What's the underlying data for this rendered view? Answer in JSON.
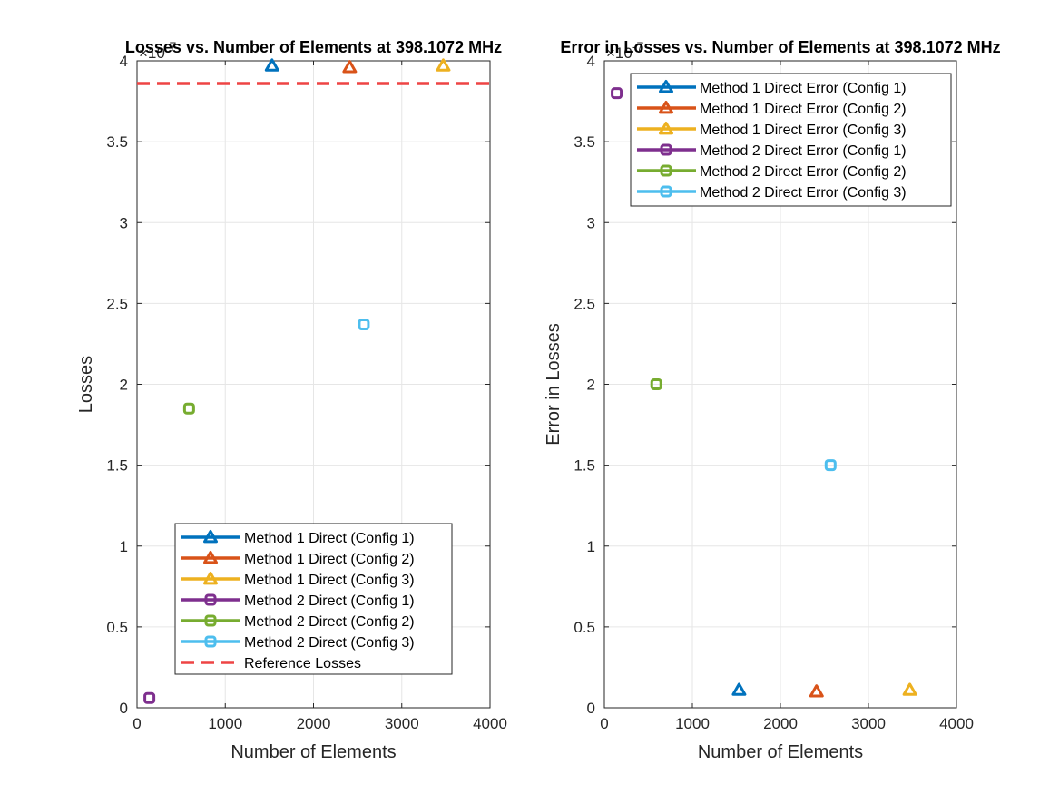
{
  "chart_data": [
    {
      "type": "scatter",
      "title": "Losses vs. Number of Elements at 398.1072 MHz",
      "xlabel": "Number of Elements",
      "ylabel": "Losses",
      "xlim": [
        0,
        4000
      ],
      "ylim": [
        0,
        4
      ],
      "xticks": [
        "0",
        "1000",
        "2000",
        "3000",
        "4000"
      ],
      "yticks": [
        "0",
        "0.5",
        "1",
        "1.5",
        "2",
        "2.5",
        "3",
        "3.5",
        "4"
      ],
      "exponent": {
        "base": "×10",
        "power": "-7"
      },
      "grid": true,
      "legend_location": "bottom-center",
      "series": [
        {
          "name": "Method 1 Direct (Config 1)",
          "marker": "triangle",
          "color": "#0072BD",
          "x": [
            1530
          ],
          "y": [
            3.97
          ]
        },
        {
          "name": "Method 1 Direct (Config 2)",
          "marker": "triangle",
          "color": "#D95319",
          "x": [
            2410
          ],
          "y": [
            3.96
          ]
        },
        {
          "name": "Method 1 Direct (Config 3)",
          "marker": "triangle",
          "color": "#EDB120",
          "x": [
            3470
          ],
          "y": [
            3.97
          ]
        },
        {
          "name": "Method 2 Direct (Config 1)",
          "marker": "square",
          "color": "#7E2F8E",
          "x": [
            140
          ],
          "y": [
            0.06
          ]
        },
        {
          "name": "Method 2 Direct (Config 2)",
          "marker": "square",
          "color": "#77AC30",
          "x": [
            590
          ],
          "y": [
            1.85
          ]
        },
        {
          "name": "Method 2 Direct (Config 3)",
          "marker": "square",
          "color": "#4DBEEE",
          "x": [
            2570
          ],
          "y": [
            2.37
          ]
        }
      ],
      "reference": {
        "name": "Reference Losses",
        "y": 3.86,
        "color": "#EE4444",
        "style": "dashed"
      }
    },
    {
      "type": "scatter",
      "title": "Error in Losses vs. Number of Elements at 398.1072 MHz",
      "xlabel": "Number of Elements",
      "ylabel": "Error in Losses",
      "xlim": [
        0,
        4000
      ],
      "ylim": [
        0,
        4
      ],
      "xticks": [
        "0",
        "1000",
        "2000",
        "3000",
        "4000"
      ],
      "yticks": [
        "0",
        "0.5",
        "1",
        "1.5",
        "2",
        "2.5",
        "3",
        "3.5",
        "4"
      ],
      "exponent": {
        "base": "×10",
        "power": "-7"
      },
      "grid": true,
      "legend_location": "top-right",
      "series": [
        {
          "name": "Method 1 Direct Error (Config 1)",
          "marker": "triangle",
          "color": "#0072BD",
          "x": [
            1530
          ],
          "y": [
            0.11
          ]
        },
        {
          "name": "Method 1 Direct Error (Config 2)",
          "marker": "triangle",
          "color": "#D95319",
          "x": [
            2410
          ],
          "y": [
            0.1
          ]
        },
        {
          "name": "Method 1 Direct Error (Config 3)",
          "marker": "triangle",
          "color": "#EDB120",
          "x": [
            3470
          ],
          "y": [
            0.11
          ]
        },
        {
          "name": "Method 2 Direct Error (Config 1)",
          "marker": "square",
          "color": "#7E2F8E",
          "x": [
            140
          ],
          "y": [
            3.8
          ]
        },
        {
          "name": "Method 2 Direct Error (Config 2)",
          "marker": "square",
          "color": "#77AC30",
          "x": [
            590
          ],
          "y": [
            2.0
          ]
        },
        {
          "name": "Method 2 Direct Error (Config 3)",
          "marker": "square",
          "color": "#4DBEEE",
          "x": [
            2570
          ],
          "y": [
            1.5
          ]
        }
      ]
    }
  ]
}
